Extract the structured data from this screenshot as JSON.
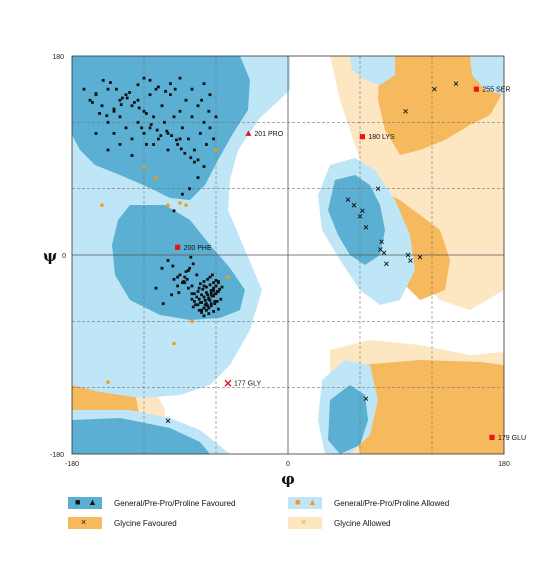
{
  "chart_data": {
    "type": "scatter",
    "title": "",
    "xlabel": "φ",
    "ylabel": "ψ",
    "xlim": [
      -180,
      180
    ],
    "ylim": [
      -180,
      180
    ],
    "x_ticks": [
      "-180",
      "0",
      "180"
    ],
    "y_ticks": [
      "180",
      "0",
      "-180"
    ],
    "grid": true,
    "colors": {
      "general_favoured": "#5AAFD3",
      "general_allowed": "#BEE6F6",
      "glycine_favoured": "#F6B95E",
      "glycine_allowed": "#FCE7C2",
      "outlier": "#E8141E",
      "general_point": "#111111",
      "general_allowed_point": "#F39C12"
    },
    "series": [
      {
        "name": "General/Pre-Pro/Proline Favoured",
        "x": [
          -170,
          -165,
          -160,
          -155,
          -150,
          -150,
          -145,
          -145,
          -140,
          -140,
          -135,
          -135,
          -130,
          -130,
          -125,
          -125,
          -120,
          -120,
          -118,
          -115,
          -115,
          -112,
          -110,
          -108,
          -105,
          -103,
          -100,
          -98,
          -95,
          -92,
          -90,
          -90,
          -88,
          -85,
          -83,
          -80,
          -80,
          -78,
          -75,
          -73,
          -72,
          -70,
          -70,
          -68,
          -66,
          -65,
          -65,
          -62,
          -60,
          -160,
          -150,
          -140,
          -130,
          -122,
          -112,
          -100,
          -90,
          -82,
          -75,
          -95,
          -88,
          -96,
          -92,
          -86,
          -83,
          -78,
          -74,
          -70,
          -80,
          -76,
          -72,
          -68,
          -64,
          -62,
          -60,
          -58,
          -77,
          -73,
          -69,
          -66,
          -63,
          -61,
          -59,
          -57,
          -74,
          -70,
          -67,
          -64,
          -61,
          -80,
          -75,
          -71,
          -68,
          -65,
          -62,
          -60,
          -78,
          -74,
          -70,
          -67,
          -64,
          -79,
          -75,
          -72,
          -69,
          -66,
          -63,
          -73,
          -70,
          -67,
          -65,
          -63,
          -72,
          -68,
          -66,
          -64,
          -61,
          -59,
          -70,
          -66,
          -62,
          -58,
          -85,
          -90,
          -95,
          -88,
          -82,
          -60,
          -56,
          -100,
          -105,
          -110,
          -70,
          -68,
          -66,
          -64,
          -62,
          -60,
          -58,
          -72,
          -80,
          -84,
          -76,
          -79,
          -81,
          -83,
          -87,
          -91,
          -69,
          -65,
          -62,
          -58,
          -55,
          -86,
          -92,
          -97,
          -104,
          -94,
          -98,
          -102,
          -108,
          -115,
          -120,
          -125,
          -132,
          -138,
          -143,
          -148,
          -154,
          -160,
          -163,
          -157,
          -151,
          -145,
          -139,
          -134,
          -128,
          -124,
          -118,
          -114,
          -109,
          -106,
          -101,
          -97,
          -93,
          -89,
          -86,
          -81,
          -78,
          -75,
          -70
        ],
        "y": [
          150,
          140,
          145,
          135,
          150,
          120,
          130,
          110,
          140,
          125,
          145,
          115,
          135,
          105,
          140,
          120,
          110,
          130,
          100,
          145,
          115,
          125,
          150,
          105,
          135,
          120,
          110,
          145,
          125,
          100,
          160,
          130,
          115,
          140,
          105,
          150,
          125,
          95,
          135,
          110,
          140,
          120,
          155,
          100,
          130,
          115,
          145,
          105,
          125,
          110,
          95,
          100,
          90,
          115,
          100,
          95,
          105,
          60,
          70,
          40,
          55,
          -10,
          -20,
          -25,
          -30,
          -35,
          -30,
          -28,
          -40,
          -38,
          -36,
          -34,
          -32,
          -30,
          -28,
          -25,
          -45,
          -43,
          -41,
          -39,
          -37,
          -35,
          -33,
          -31,
          -50,
          -48,
          -46,
          -44,
          -42,
          -35,
          -33,
          -31,
          -29,
          -27,
          -25,
          -23,
          -42,
          -40,
          -38,
          -36,
          -34,
          -47,
          -45,
          -43,
          -41,
          -39,
          -37,
          -26,
          -24,
          -22,
          -20,
          -18,
          -52,
          -50,
          -48,
          -46,
          -44,
          -42,
          -55,
          -53,
          -51,
          -49,
          -15,
          -18,
          -22,
          -25,
          -12,
          -35,
          -40,
          -5,
          -12,
          -30,
          -48,
          -44,
          -40,
          -36,
          -32,
          -28,
          -24,
          -50,
          -28,
          -22,
          -18,
          -8,
          -2,
          -14,
          -24,
          -34,
          -45,
          -41,
          -37,
          -33,
          -29,
          -20,
          -28,
          -36,
          -44,
          150,
          155,
          148,
          152,
          158,
          160,
          154,
          147,
          142,
          150,
          156,
          158,
          146,
          138,
          128,
          126,
          132,
          136,
          142,
          138,
          133,
          128,
          118,
          113,
          108,
          112,
          108,
          104,
          96,
          92,
          88,
          84,
          86,
          80
        ]
      },
      {
        "name": "General/Pre-Pro/Proline Allowed",
        "x": [
          -155,
          -120,
          -110,
          -100,
          -80,
          -95,
          -90,
          -85,
          -150,
          -50,
          -60
        ],
        "y": [
          45,
          80,
          70,
          45,
          -60,
          -80,
          47,
          45,
          -115,
          -20,
          95
        ]
      },
      {
        "name": "Glycine Favoured",
        "x": [
          50,
          55,
          60,
          62,
          65,
          75,
          77,
          78,
          80,
          82,
          100,
          102,
          110,
          122,
          98,
          140,
          -100,
          65
        ],
        "y": [
          50,
          45,
          35,
          40,
          25,
          60,
          5,
          12,
          2,
          -8,
          0,
          -5,
          -2,
          150,
          130,
          155,
          -150,
          -130
        ]
      },
      {
        "name": "Glycine Allowed",
        "x": [],
        "y": []
      }
    ],
    "annotations": [
      {
        "label": "201 PRO",
        "x": -33,
        "y": 110,
        "marker": "triangle"
      },
      {
        "label": "180 LYS",
        "x": 62,
        "y": 107,
        "marker": "square"
      },
      {
        "label": "255 SER",
        "x": 157,
        "y": 150,
        "marker": "square"
      },
      {
        "label": "200 PHE",
        "x": -92,
        "y": 7,
        "marker": "square"
      },
      {
        "label": "177 GLY",
        "x": -50,
        "y": -116,
        "marker": "cross"
      },
      {
        "label": "179 GLU",
        "x": 170,
        "y": -165,
        "marker": "square"
      }
    ],
    "legend": {
      "placement": "bottom",
      "entries": [
        {
          "label": "General/Pre-Pro/Proline Favoured",
          "swatch": "#5AAFD3",
          "markers": [
            "■",
            "▲"
          ],
          "marker_color": "#111111"
        },
        {
          "label": "General/Pre-Pro/Proline Allowed",
          "swatch": "#BEE6F6",
          "markers": [
            "■",
            "▲"
          ],
          "marker_color": "#F39C12"
        },
        {
          "label": "Glycine Favoured",
          "swatch": "#F6B95E",
          "markers": [
            "×"
          ],
          "marker_color": "#111111"
        },
        {
          "label": "Glycine Allowed",
          "swatch": "#FCE7C2",
          "markers": [
            "×"
          ],
          "marker_color": "#F39C12"
        }
      ]
    }
  }
}
